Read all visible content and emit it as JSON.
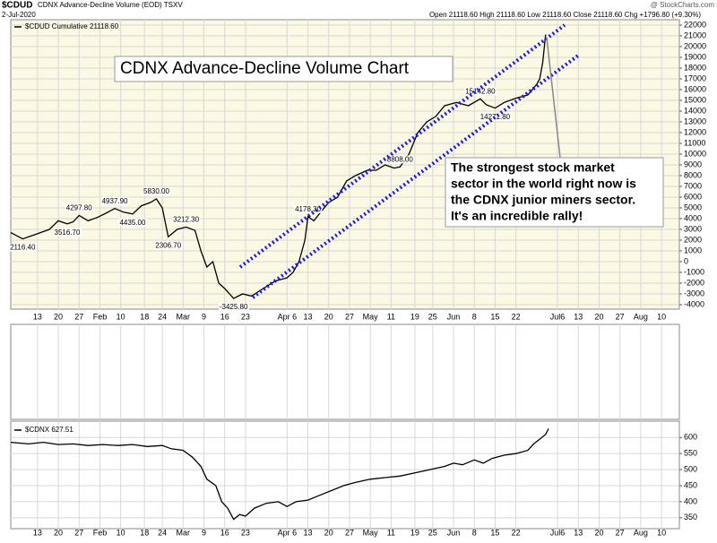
{
  "header": {
    "symbol": "$CDUD",
    "name": "CDNX Advance-Decline Volume (EOD) TSXV",
    "date": "2-Jul-2020",
    "source": "@ StockCharts.com",
    "quote": "Open 21118.60  High 21118.60  Low 21118.60  Close 21118.60  Chg +1796.80 (+9.30%)"
  },
  "annotations": {
    "title": "CDNX Advance-Decline Volume Chart",
    "comment": [
      "The strongest stock market",
      "sector in the world right now is",
      "the CDNX junior miners sector.",
      "It's an incredible rally!"
    ]
  },
  "chart_data": [
    {
      "type": "line",
      "xlim": [
        4,
        229
      ],
      "ylim": [
        -4420,
        22500
      ],
      "xticks": [
        {
          "value": 13,
          "label": "13"
        },
        {
          "value": 20,
          "label": "20"
        },
        {
          "value": 27,
          "label": "27"
        },
        {
          "value": 34,
          "label": "Feb"
        },
        {
          "value": 41,
          "label": "10"
        },
        {
          "value": 49,
          "label": "18"
        },
        {
          "value": 55,
          "label": "24"
        },
        {
          "value": 62,
          "label": "Mar"
        },
        {
          "value": 69,
          "label": "9"
        },
        {
          "value": 76,
          "label": "16"
        },
        {
          "value": 83,
          "label": "23"
        },
        {
          "value": 97,
          "label": "Apr 6"
        },
        {
          "value": 104,
          "label": "13"
        },
        {
          "value": 111,
          "label": "20"
        },
        {
          "value": 118,
          "label": "27"
        },
        {
          "value": 125,
          "label": "May"
        },
        {
          "value": 132,
          "label": "11"
        },
        {
          "value": 140,
          "label": "19"
        },
        {
          "value": 146,
          "label": "25"
        },
        {
          "value": 153,
          "label": "Jun"
        },
        {
          "value": 160,
          "label": "8"
        },
        {
          "value": 167,
          "label": "15"
        },
        {
          "value": 174,
          "label": "22"
        },
        {
          "value": 188,
          "label": "Jul6"
        },
        {
          "value": 195,
          "label": "13"
        },
        {
          "value": 202,
          "label": "20"
        },
        {
          "value": 209,
          "label": "27"
        },
        {
          "value": 216,
          "label": "Aug"
        },
        {
          "value": 223,
          "label": "10"
        }
      ],
      "yticks": [
        -4000,
        -3000,
        -2000,
        -1000,
        0,
        1000,
        2000,
        3000,
        4000,
        5000,
        6000,
        7000,
        8000,
        9000,
        10000,
        11000,
        12000,
        13000,
        14000,
        15000,
        16000,
        17000,
        18000,
        19000,
        20000,
        21000,
        22000
      ],
      "grid": true,
      "series": [
        {
          "name": "$CDUD Cumulative 21118.60",
          "color": "#000000",
          "x": [
            4,
            8,
            12,
            17,
            20,
            23,
            25,
            27,
            30,
            33,
            36,
            39,
            42,
            45,
            48,
            51,
            53,
            55,
            57,
            60,
            63,
            66,
            68,
            70,
            72,
            74,
            76,
            79,
            82,
            85,
            89,
            93,
            97,
            99,
            101,
            103,
            104,
            106,
            108,
            111,
            114,
            117,
            120,
            124,
            127,
            130,
            133,
            135,
            138,
            141,
            144,
            147,
            150,
            154,
            158,
            162,
            164,
            167,
            170,
            174,
            178,
            181,
            182,
            183,
            184
          ],
          "values": [
            2700,
            2116.4,
            2500,
            3000,
            3800,
            3516.7,
            3700,
            4297.8,
            3800,
            4100,
            4500,
            4937.9,
            4600,
            4435,
            5200,
            5500,
            5830,
            5000,
            2306.7,
            3000,
            3212.3,
            2900,
            1000,
            -500,
            0,
            -2000,
            -2500,
            -3425.8,
            -3000,
            -3200,
            -2500,
            -1800,
            -1500,
            -1000,
            0,
            2000,
            4178.3,
            3800,
            4500,
            5500,
            6000,
            7500,
            8000,
            8500,
            8500,
            9000,
            8700,
            8808,
            10000,
            12000,
            13000,
            13500,
            14500,
            14800,
            14500,
            15142.8,
            14600,
            14271.8,
            14800,
            15200,
            15500,
            16500,
            17000,
            18500,
            21118.6
          ],
          "value_labels": [
            null,
            "2116.40",
            null,
            null,
            null,
            "3516.70",
            null,
            "4297.80",
            null,
            null,
            null,
            "4937.90",
            null,
            "4435.00",
            null,
            null,
            "5830.00",
            null,
            "2306.70",
            null,
            "3212.30",
            null,
            null,
            null,
            null,
            null,
            null,
            "-3425.80",
            null,
            null,
            null,
            null,
            null,
            null,
            null,
            null,
            "4178.30",
            null,
            null,
            null,
            null,
            null,
            null,
            null,
            null,
            null,
            null,
            "8808.00",
            null,
            null,
            null,
            null,
            null,
            null,
            null,
            "15142.80",
            null,
            "14271.80",
            null,
            null,
            null,
            null,
            null,
            null,
            null
          ]
        }
      ]
    },
    {
      "type": "line",
      "xlim": [
        4,
        229
      ],
      "ylim": [
        316,
        651
      ],
      "xticks": [
        {
          "value": 13,
          "label": "13"
        },
        {
          "value": 20,
          "label": "20"
        },
        {
          "value": 27,
          "label": "27"
        },
        {
          "value": 34,
          "label": "Feb"
        },
        {
          "value": 41,
          "label": "10"
        },
        {
          "value": 49,
          "label": "18"
        },
        {
          "value": 55,
          "label": "24"
        },
        {
          "value": 62,
          "label": "Mar"
        },
        {
          "value": 69,
          "label": "9"
        },
        {
          "value": 76,
          "label": "16"
        },
        {
          "value": 83,
          "label": "23"
        },
        {
          "value": 97,
          "label": "Apr 6"
        },
        {
          "value": 104,
          "label": "13"
        },
        {
          "value": 111,
          "label": "20"
        },
        {
          "value": 118,
          "label": "27"
        },
        {
          "value": 125,
          "label": "May"
        },
        {
          "value": 132,
          "label": "11"
        },
        {
          "value": 140,
          "label": "19"
        },
        {
          "value": 146,
          "label": "25"
        },
        {
          "value": 153,
          "label": "Jun"
        },
        {
          "value": 160,
          "label": "8"
        },
        {
          "value": 167,
          "label": "15"
        },
        {
          "value": 174,
          "label": "22"
        },
        {
          "value": 188,
          "label": "Jul6"
        },
        {
          "value": 195,
          "label": "13"
        },
        {
          "value": 202,
          "label": "20"
        },
        {
          "value": 209,
          "label": "27"
        },
        {
          "value": 216,
          "label": "Aug"
        },
        {
          "value": 223,
          "label": "10"
        }
      ],
      "yticks": [
        350,
        400,
        450,
        500,
        550,
        600
      ],
      "grid": true,
      "series": [
        {
          "name": "$CDNX 627.51",
          "color": "#000000",
          "x": [
            4,
            10,
            15,
            20,
            25,
            30,
            35,
            40,
            45,
            50,
            55,
            58,
            62,
            65,
            68,
            70,
            73,
            75,
            77,
            79,
            81,
            83,
            86,
            90,
            94,
            97,
            100,
            104,
            108,
            112,
            116,
            120,
            125,
            130,
            135,
            140,
            145,
            150,
            153,
            156,
            160,
            163,
            166,
            170,
            174,
            178,
            180,
            182,
            184,
            185
          ],
          "values": [
            585,
            580,
            585,
            578,
            580,
            575,
            578,
            575,
            578,
            572,
            575,
            565,
            560,
            540,
            510,
            470,
            450,
            400,
            380,
            345,
            360,
            355,
            380,
            395,
            400,
            385,
            400,
            405,
            420,
            435,
            450,
            460,
            470,
            475,
            480,
            490,
            500,
            510,
            520,
            515,
            530,
            520,
            535,
            545,
            550,
            560,
            580,
            595,
            610,
            627.51
          ]
        }
      ]
    }
  ]
}
